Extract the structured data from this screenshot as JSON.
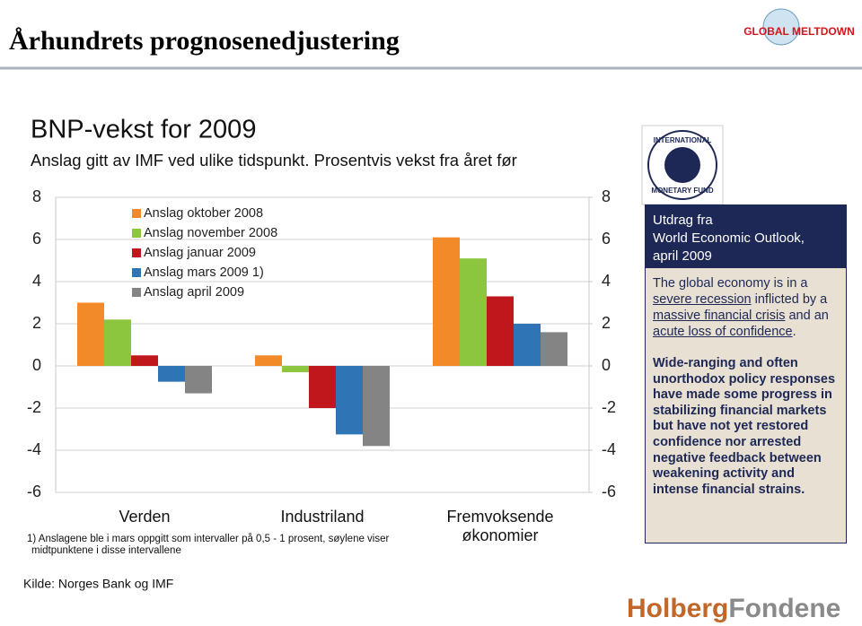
{
  "slide_title": "Århundrets prognosenedjustering",
  "logo_top": "GLOBAL MELTDOWN",
  "imf_logo": [
    "INTERNATIONAL",
    "MONETARY FUND"
  ],
  "chart_data": {
    "type": "bar",
    "title": "BNP-vekst for 2009",
    "subtitle": "Anslag gitt av IMF ved ulike tidspunkt. Prosentvis vekst fra året før",
    "categories": [
      [
        "Verden"
      ],
      [
        "Industriland"
      ],
      [
        "Fremvoksende",
        "økonomier"
      ]
    ],
    "series": [
      {
        "name": "Anslag oktober 2008",
        "color": "#f28a2a",
        "values": [
          3.0,
          0.5,
          6.1
        ]
      },
      {
        "name": "Anslag november 2008",
        "color": "#8cc63e",
        "values": [
          2.2,
          -0.3,
          5.1
        ]
      },
      {
        "name": "Anslag januar 2009",
        "color": "#c0171d",
        "values": [
          0.5,
          -2.0,
          3.3
        ]
      },
      {
        "name": "Anslag mars 2009 1)",
        "color": "#2f74b5",
        "values": [
          -0.75,
          -3.25,
          2.0
        ]
      },
      {
        "name": "Anslag april 2009",
        "color": "#848484",
        "values": [
          -1.3,
          -3.8,
          1.6
        ]
      }
    ],
    "ylim": [
      -6,
      8
    ],
    "yticks": [
      -6,
      -4,
      -2,
      0,
      2,
      4,
      6,
      8
    ],
    "y2lim": [
      -6,
      8
    ],
    "y2ticks": [
      -6,
      -4,
      -2,
      0,
      2,
      4,
      6,
      8
    ],
    "grid": true,
    "legend": "upper left",
    "footnote": [
      "1) Anslagene ble i mars oppgitt som intervaller på 0,5 - 1 prosent, søylene viser",
      "midtpunktene i disse intervallene"
    ]
  },
  "panel": {
    "header": [
      "Utdrag fra",
      "World Economic Outlook,",
      "april 2009"
    ],
    "paragraph1": [
      {
        "text": "The global economy is in a ",
        "underline": false
      },
      {
        "text": "severe recession",
        "underline": true
      },
      {
        "text": " inflicted by a ",
        "underline": false
      },
      {
        "text": "massive financial crisis",
        "underline": true
      },
      {
        "text": " and an ",
        "underline": false
      },
      {
        "text": "acute loss of confidence",
        "underline": true
      },
      {
        "text": ".",
        "underline": false
      }
    ],
    "paragraph2": "Wide-ranging and often unorthodox policy responses have made some progress in stabilizing financial markets but have not yet restored confidence nor arrested negative feedback between weakening activity and intense financial strains."
  },
  "source": "Kilde: Norges Bank og IMF",
  "logo_bottom": [
    "Holberg",
    "Fondene"
  ]
}
